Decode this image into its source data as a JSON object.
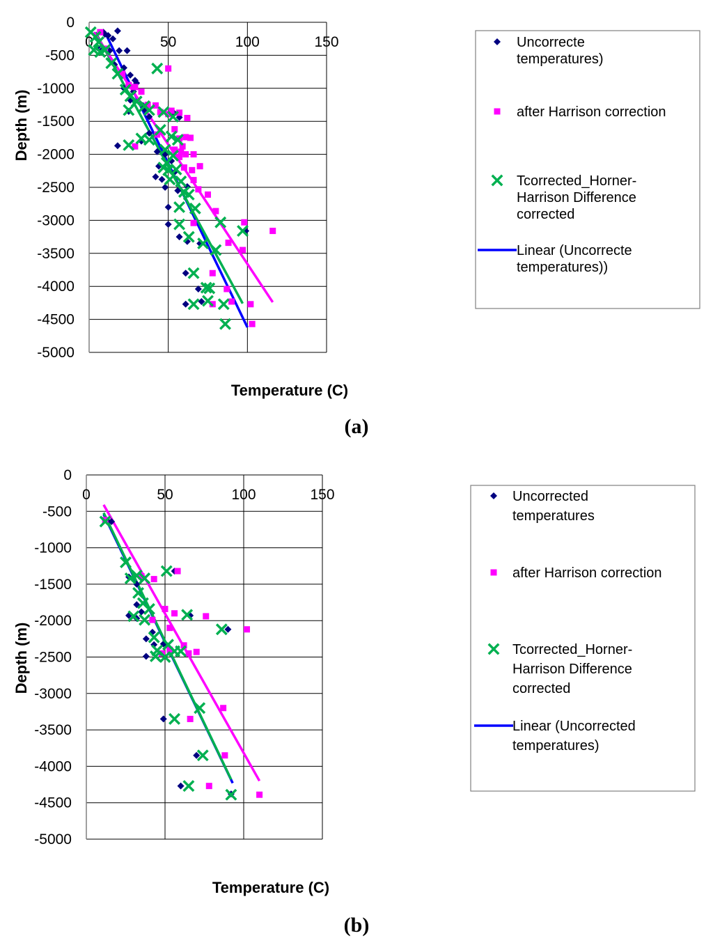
{
  "colors": {
    "uncorrected": "#000080",
    "harrison": "#ff00ff",
    "horner": "#00b050",
    "linear": "#0000ff",
    "grid": "#000000",
    "legend_border": "#808080"
  },
  "chart_data": [
    {
      "panel_label": "(a)",
      "type": "scatter",
      "xlabel": "Temperature (C)",
      "ylabel": "Depth (m)",
      "xlim": [
        0,
        150
      ],
      "ylim": [
        -5000,
        0
      ],
      "x_ticks": [
        "0",
        "50",
        "100",
        "150"
      ],
      "y_ticks": [
        "0",
        "-500",
        "-1000",
        "-1500",
        "-2000",
        "-2500",
        "-3000",
        "-3500",
        "-4000",
        "-4500",
        "-5000"
      ],
      "grid": "horizontal",
      "legend_position": "right",
      "legend": [
        {
          "key": "uncorrected",
          "marker": "diamond",
          "lines": [
            "Uncorrecte",
            "temperatures)"
          ]
        },
        {
          "key": "harrison",
          "marker": "square",
          "lines": [
            "after Harrison correction"
          ]
        },
        {
          "key": "horner",
          "marker": "x",
          "lines": [
            "Tcorrected_Horner-",
            "Harrison Difference",
            "corrected"
          ]
        },
        {
          "key": "linear",
          "marker": "line",
          "lines": [
            "Linear (Uncorrecte",
            "temperatures))"
          ]
        }
      ],
      "series": [
        {
          "key": "uncorrected",
          "marker": "diamond",
          "points": [
            [
              9,
              -150
            ],
            [
              10,
              -180
            ],
            [
              12,
              -200
            ],
            [
              15,
              -250
            ],
            [
              18,
              -130
            ],
            [
              5,
              -380
            ],
            [
              8,
              -420
            ],
            [
              13,
              -430
            ],
            [
              19,
              -430
            ],
            [
              24,
              -430
            ],
            [
              16,
              -640
            ],
            [
              22,
              -690
            ],
            [
              26,
              -800
            ],
            [
              29,
              -880
            ],
            [
              30,
              -920
            ],
            [
              22,
              -1000
            ],
            [
              28,
              -1050
            ],
            [
              26,
              -1180
            ],
            [
              34,
              -1260
            ],
            [
              25,
              -1350
            ],
            [
              35,
              -1320
            ],
            [
              38,
              -1430
            ],
            [
              53,
              -1360
            ],
            [
              57,
              -1440
            ],
            [
              33,
              -1800
            ],
            [
              18,
              -1870
            ],
            [
              38,
              -1680
            ],
            [
              42,
              -1710
            ],
            [
              43,
              -1960
            ],
            [
              48,
              -2000
            ],
            [
              52,
              -2100
            ],
            [
              44,
              -2180
            ],
            [
              42,
              -2340
            ],
            [
              46,
              -2380
            ],
            [
              48,
              -2500
            ],
            [
              54,
              -2270
            ],
            [
              56,
              -2550
            ],
            [
              62,
              -2490
            ],
            [
              50,
              -2800
            ],
            [
              50,
              -3060
            ],
            [
              57,
              -3250
            ],
            [
              62,
              -3320
            ],
            [
              70,
              -3350
            ],
            [
              61,
              -3800
            ],
            [
              69,
              -4040
            ],
            [
              71,
              -4230
            ],
            [
              61,
              -4270
            ],
            [
              99,
              -3160
            ]
          ]
        },
        {
          "key": "harrison",
          "marker": "square",
          "points": [
            [
              7,
              -150
            ],
            [
              10,
              -400
            ],
            [
              21,
              -780
            ],
            [
              25,
              -950
            ],
            [
              29,
              -980
            ],
            [
              33,
              -1050
            ],
            [
              37,
              -1250
            ],
            [
              42,
              -1260
            ],
            [
              45,
              -1360
            ],
            [
              50,
              -1390
            ],
            [
              52,
              -1340
            ],
            [
              57,
              -1370
            ],
            [
              62,
              -1450
            ],
            [
              54,
              -1620
            ],
            [
              57,
              -1760
            ],
            [
              61,
              -1740
            ],
            [
              64,
              -1750
            ],
            [
              59,
              -1880
            ],
            [
              54,
              -1930
            ],
            [
              58,
              -1960
            ],
            [
              61,
              -2000
            ],
            [
              66,
              -2000
            ],
            [
              57,
              -2040
            ],
            [
              60,
              -2200
            ],
            [
              65,
              -2240
            ],
            [
              70,
              -2180
            ],
            [
              66,
              -2390
            ],
            [
              69,
              -2530
            ],
            [
              75,
              -2610
            ],
            [
              80,
              -2860
            ],
            [
              66,
              -3040
            ],
            [
              88,
              -3340
            ],
            [
              97,
              -3450
            ],
            [
              98,
              -3030
            ],
            [
              116,
              -3160
            ],
            [
              78,
              -3800
            ],
            [
              87,
              -4040
            ],
            [
              90,
              -4230
            ],
            [
              78,
              -4270
            ],
            [
              102,
              -4270
            ],
            [
              103,
              -4570
            ],
            [
              50,
              -700
            ],
            [
              29,
              -1880
            ],
            [
              43,
              -1700
            ]
          ]
        },
        {
          "key": "horner",
          "marker": "x",
          "points": [
            [
              1,
              -150
            ],
            [
              4,
              -220
            ],
            [
              6,
              -300
            ],
            [
              3,
              -420
            ],
            [
              7,
              -450
            ],
            [
              10,
              -420
            ],
            [
              14,
              -620
            ],
            [
              18,
              -780
            ],
            [
              23,
              -1020
            ],
            [
              26,
              -1120
            ],
            [
              30,
              -1200
            ],
            [
              25,
              -1330
            ],
            [
              35,
              -1270
            ],
            [
              38,
              -1330
            ],
            [
              47,
              -1360
            ],
            [
              53,
              -1430
            ],
            [
              33,
              -1760
            ],
            [
              38,
              -1780
            ],
            [
              25,
              -1860
            ],
            [
              45,
              -1630
            ],
            [
              52,
              -1730
            ],
            [
              56,
              -1780
            ],
            [
              48,
              -1930
            ],
            [
              53,
              -2020
            ],
            [
              49,
              -2130
            ],
            [
              50,
              -2240
            ],
            [
              51,
              -2380
            ],
            [
              55,
              -2230
            ],
            [
              58,
              -2410
            ],
            [
              60,
              -2570
            ],
            [
              63,
              -2610
            ],
            [
              57,
              -2800
            ],
            [
              67,
              -2820
            ],
            [
              57,
              -3060
            ],
            [
              63,
              -3250
            ],
            [
              72,
              -3350
            ],
            [
              80,
              -3450
            ],
            [
              83,
              -3030
            ],
            [
              97,
              -3160
            ],
            [
              66,
              -3800
            ],
            [
              74,
              -4020
            ],
            [
              76,
              -4030
            ],
            [
              75,
              -4220
            ],
            [
              66,
              -4270
            ],
            [
              85,
              -4270
            ],
            [
              86,
              -4570
            ],
            [
              43,
              -700
            ],
            [
              47,
              -2200
            ]
          ]
        }
      ],
      "trendlines": [
        {
          "key": "linear",
          "from": [
            10,
            -150
          ],
          "to": [
            100,
            -4620
          ]
        },
        {
          "key": "horner",
          "from": [
            4,
            -150
          ],
          "to": [
            97,
            -4260
          ]
        },
        {
          "key": "harrison",
          "from": [
            3,
            -150
          ],
          "to": [
            116,
            -4240
          ]
        }
      ]
    },
    {
      "panel_label": "(b)",
      "type": "scatter",
      "xlabel": "Temperature (C)",
      "ylabel": "Depth (m)",
      "xlim": [
        0,
        150
      ],
      "ylim": [
        -5000,
        0
      ],
      "x_ticks": [
        "0",
        "50",
        "100",
        "150"
      ],
      "y_ticks": [
        "0",
        "-500",
        "-1000",
        "-1500",
        "-2000",
        "-2500",
        "-3000",
        "-3500",
        "-4000",
        "-4500",
        "-5000"
      ],
      "grid": "horizontal",
      "legend_position": "right",
      "legend": [
        {
          "key": "uncorrected",
          "marker": "diamond",
          "lines": [
            "Uncorrected",
            "temperatures"
          ]
        },
        {
          "key": "harrison",
          "marker": "square",
          "lines": [
            "after Harrison correction"
          ]
        },
        {
          "key": "horner",
          "marker": "x",
          "lines": [
            "Tcorrected_Horner-",
            "Harrison Difference",
            "corrected"
          ]
        },
        {
          "key": "linear",
          "marker": "line",
          "lines": [
            "Linear (Uncorrected",
            "temperatures)"
          ]
        }
      ],
      "series": [
        {
          "key": "uncorrected",
          "marker": "diamond",
          "points": [
            [
              16,
              -640
            ],
            [
              13,
              -620
            ],
            [
              27,
              -1400
            ],
            [
              32,
              -1500
            ],
            [
              32,
              -1780
            ],
            [
              27,
              -1930
            ],
            [
              32,
              -1970
            ],
            [
              35,
              -1880
            ],
            [
              38,
              -2250
            ],
            [
              42,
              -2160
            ],
            [
              43,
              -2330
            ],
            [
              38,
              -2490
            ],
            [
              49,
              -2320
            ],
            [
              56,
              -1320
            ],
            [
              66,
              -1930
            ],
            [
              90,
              -2120
            ],
            [
              49,
              -3350
            ],
            [
              70,
              -3850
            ],
            [
              60,
              -4270
            ],
            [
              92,
              -4380
            ]
          ]
        },
        {
          "key": "harrison",
          "marker": "square",
          "points": [
            [
              12,
              -620
            ],
            [
              35,
              -1390
            ],
            [
              43,
              -1430
            ],
            [
              58,
              -1320
            ],
            [
              42,
              -1990
            ],
            [
              50,
              -1840
            ],
            [
              56,
              -1900
            ],
            [
              53,
              -2100
            ],
            [
              48,
              -2450
            ],
            [
              53,
              -2400
            ],
            [
              62,
              -2340
            ],
            [
              65,
              -2450
            ],
            [
              70,
              -2430
            ],
            [
              76,
              -1940
            ],
            [
              102,
              -2120
            ],
            [
              87,
              -3200
            ],
            [
              66,
              -3350
            ],
            [
              88,
              -3850
            ],
            [
              78,
              -4270
            ],
            [
              110,
              -4390
            ]
          ]
        },
        {
          "key": "horner",
          "marker": "x",
          "points": [
            [
              12,
              -640
            ],
            [
              25,
              -1200
            ],
            [
              28,
              -1420
            ],
            [
              32,
              -1380
            ],
            [
              37,
              -1420
            ],
            [
              33,
              -1620
            ],
            [
              36,
              -1760
            ],
            [
              30,
              -1940
            ],
            [
              37,
              -1990
            ],
            [
              40,
              -1840
            ],
            [
              43,
              -2230
            ],
            [
              45,
              -2410
            ],
            [
              44,
              -2490
            ],
            [
              50,
              -2500
            ],
            [
              52,
              -2330
            ],
            [
              56,
              -2420
            ],
            [
              60,
              -2420
            ],
            [
              51,
              -1320
            ],
            [
              64,
              -1920
            ],
            [
              86,
              -2120
            ],
            [
              56,
              -3350
            ],
            [
              72,
              -3200
            ],
            [
              74,
              -3850
            ],
            [
              65,
              -4270
            ],
            [
              92,
              -4390
            ]
          ]
        }
      ],
      "trendlines": [
        {
          "key": "linear",
          "from": [
            11,
            -540
          ],
          "to": [
            93,
            -4230
          ]
        },
        {
          "key": "horner",
          "from": [
            11,
            -520
          ],
          "to": [
            92,
            -4180
          ]
        },
        {
          "key": "harrison",
          "from": [
            11,
            -410
          ],
          "to": [
            110,
            -4200
          ]
        }
      ]
    }
  ]
}
